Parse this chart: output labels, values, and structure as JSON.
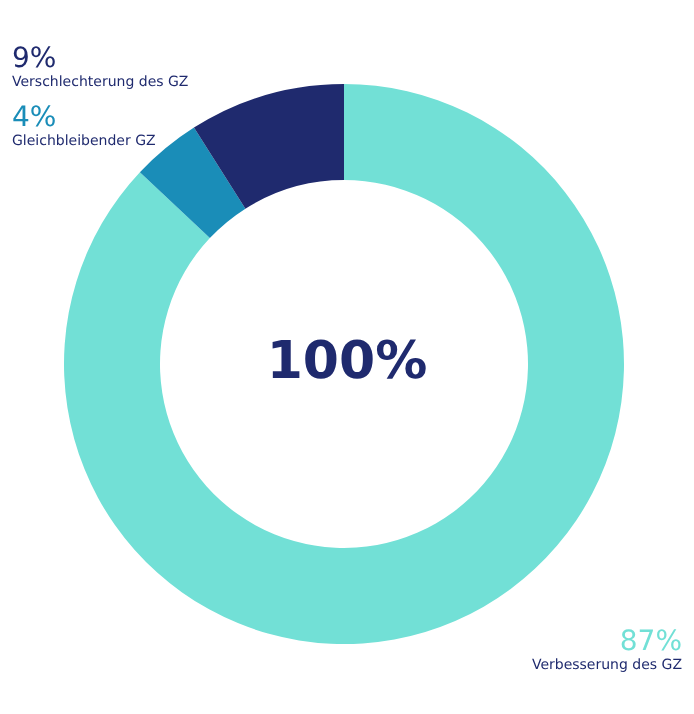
{
  "chart_data": {
    "type": "donut",
    "categories": [
      "Verbesserung des GZ",
      "Gleichbleibender GZ",
      "Verschlechterung des GZ"
    ],
    "values": [
      87,
      4,
      9
    ],
    "value_labels": [
      "87%",
      "4%",
      "9%"
    ],
    "colors": [
      "#72e0d6",
      "#1a8db8",
      "#1f2a6e"
    ],
    "annotations": [
      "100%"
    ]
  }
}
